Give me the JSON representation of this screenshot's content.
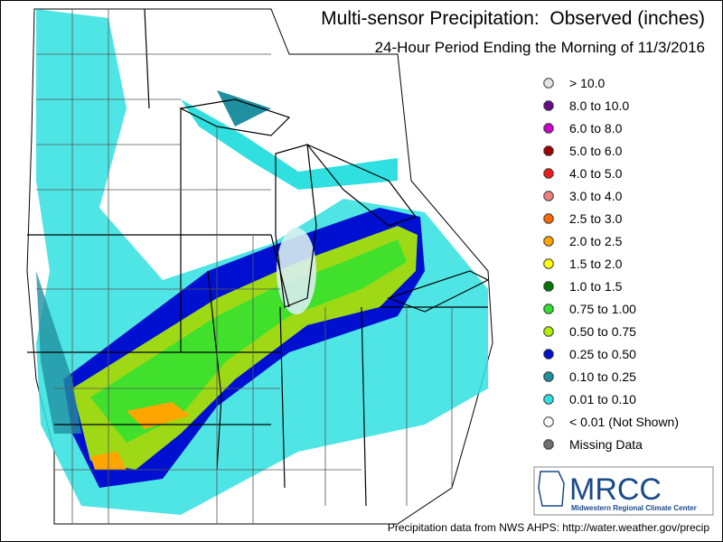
{
  "header": {
    "title": "Multi-sensor Precipitation:  Observed (inches)",
    "subtitle": "24-Hour Period Ending the Morning of 11/3/2016"
  },
  "legend": {
    "items": [
      {
        "label": "> 10.0",
        "color": "#e4e4e4"
      },
      {
        "label": "8.0 to 10.0",
        "color": "#6a0a8a"
      },
      {
        "label": "6.0 to 8.0",
        "color": "#c800c8"
      },
      {
        "label": "5.0 to 6.0",
        "color": "#a00000"
      },
      {
        "label": "4.0 to 5.0",
        "color": "#ee1c1c"
      },
      {
        "label": "3.0 to 4.0",
        "color": "#f08080"
      },
      {
        "label": "2.5 to 3.0",
        "color": "#ff6a00"
      },
      {
        "label": "2.0 to 2.5",
        "color": "#ffa500"
      },
      {
        "label": "1.5 to 2.0",
        "color": "#ffff00"
      },
      {
        "label": "1.0 to 1.5",
        "color": "#007800"
      },
      {
        "label": "0.75 to 1.00",
        "color": "#30e030"
      },
      {
        "label": "0.50 to 0.75",
        "color": "#b0f000"
      },
      {
        "label": "0.25 to 0.50",
        "color": "#0010d0"
      },
      {
        "label": "0.10 to 0.25",
        "color": "#2090a0"
      },
      {
        "label": "0.01 to 0.10",
        "color": "#30e0e0"
      },
      {
        "label": "< 0.01 (Not Shown)",
        "color": "#ffffff"
      },
      {
        "label": "Missing Data",
        "color": "#707070"
      }
    ]
  },
  "logo": {
    "name": "MRCC",
    "full_name": "Midwestern Regional Climate Center"
  },
  "footer": "Precipitation data from NWS AHPS: http://water.weather.gov/precip"
}
